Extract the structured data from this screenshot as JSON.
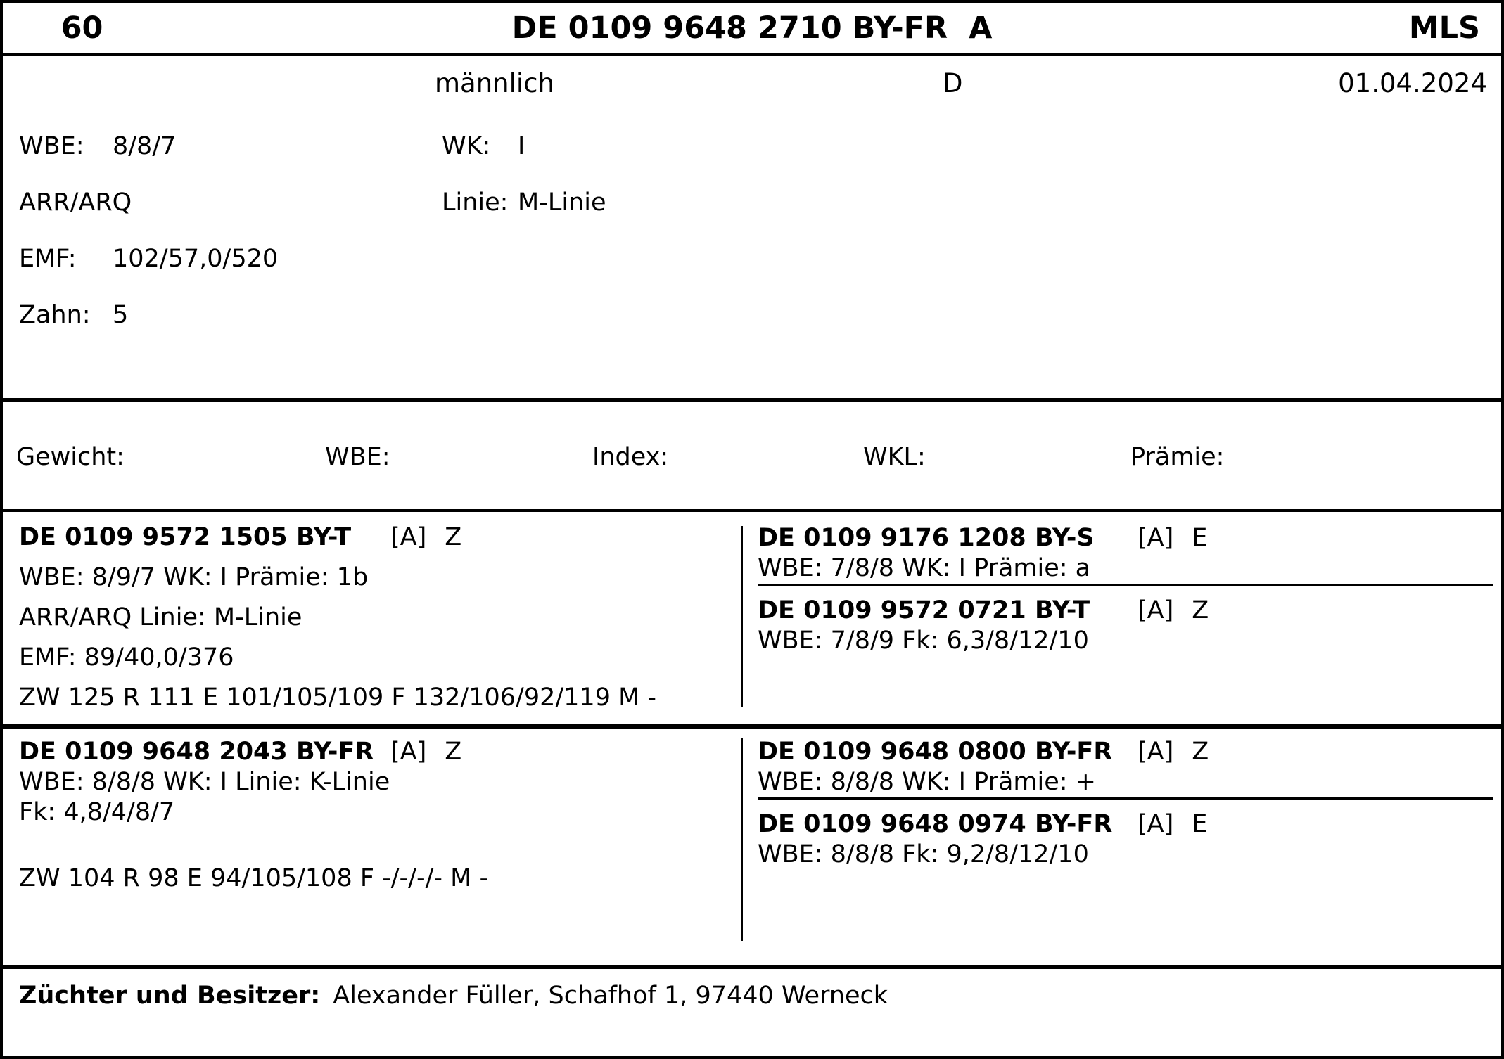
{
  "header": {
    "lot_number": "60",
    "animal_id": "DE 0109 9648 2710 BY-FR  A",
    "breed_code": "MLS",
    "sex": "männlich",
    "origin": "D",
    "birth_date": "01.04.2024"
  },
  "details": {
    "wbe_label": "WBE:",
    "wbe_value": "8/8/7",
    "wk_label": "WK:",
    "wk_value": "I",
    "genotype": "ARR/ARQ",
    "linie_label": "Linie:",
    "linie_value": "M-Linie",
    "emf_label": "EMF:",
    "emf_value": "102/57,0/520",
    "zahn_label": "Zahn:",
    "zahn_value": "5"
  },
  "auction_fields": {
    "gewicht_label": "Gewicht:",
    "wbe_label": "WBE:",
    "index_label": "Index:",
    "wkl_label": "WKL:",
    "praemie_label": "Prämie:"
  },
  "pedigree": {
    "sire": {
      "id": "DE 0109 9572 1505 BY-T",
      "flag": "[A]",
      "code": "Z",
      "lines": [
        "WBE: 8/9/7 WK: I Prämie: 1b",
        "ARR/ARQ Linie: M-Linie",
        "EMF: 89/40,0/376",
        "ZW 125 R 111 E 101/105/109 F 132/106/92/119 M -"
      ]
    },
    "sire_sire": {
      "id": "DE 0109 9176 1208 BY-S",
      "flag": "[A]",
      "code": "E",
      "line": "WBE: 7/8/8 WK: I Prämie: a"
    },
    "sire_dam": {
      "id": "DE 0109 9572 0721 BY-T",
      "flag": "[A]",
      "code": "Z",
      "line": "WBE: 7/8/9 Fk: 6,3/8/12/10"
    },
    "dam": {
      "id": "DE 0109 9648 2043 BY-FR",
      "flag": "[A]",
      "code": "Z",
      "lines": [
        "WBE: 8/8/8 WK: I Linie: K-Linie",
        "Fk: 4,8/4/8/7",
        "ZW 104 R 98 E 94/105/108 F -/-/-/- M -"
      ]
    },
    "dam_sire": {
      "id": "DE 0109 9648 0800 BY-FR",
      "flag": "[A]",
      "code": "Z",
      "line": "WBE: 8/8/8 WK: I Prämie: +"
    },
    "dam_dam": {
      "id": "DE 0109 9648 0974 BY-FR",
      "flag": "[A]",
      "code": "E",
      "line": "WBE: 8/8/8 Fk: 9,2/8/12/10"
    }
  },
  "footer": {
    "label": "Züchter und Besitzer:",
    "value": "Alexander Füller, Schafhof 1, 97440 Werneck"
  }
}
